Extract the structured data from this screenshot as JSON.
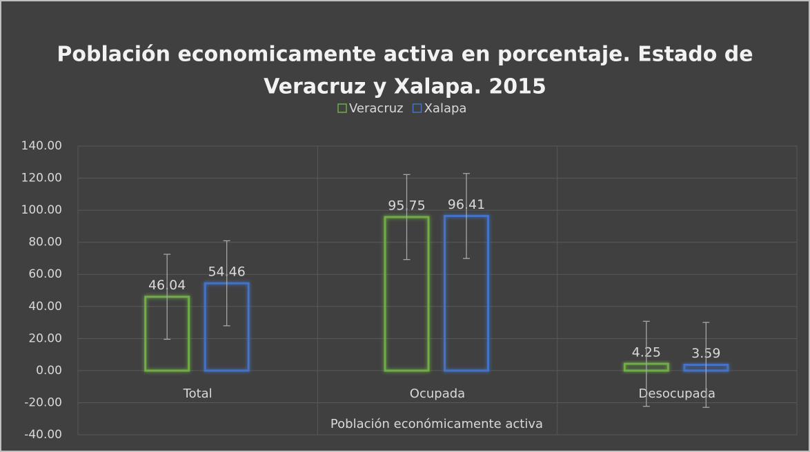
{
  "chart_data": {
    "type": "bar",
    "title": [
      "Población economicamente activa en porcentaje. Estado de",
      "Veracruz y Xalapa. 2015"
    ],
    "x_label": "Población económicamente activa",
    "categories": [
      "Total",
      "Ocupada",
      "Desocupada"
    ],
    "series": [
      {
        "name": "Veracruz",
        "color": "#70ad47",
        "values": [
          46.04,
          95.75,
          4.25
        ],
        "errors": [
          26.5,
          26.5,
          26.5
        ]
      },
      {
        "name": "Xalapa",
        "color": "#4472c4",
        "values": [
          54.46,
          96.41,
          3.59
        ],
        "errors": [
          26.5,
          26.5,
          26.5
        ]
      }
    ],
    "ylim": [
      -40,
      140
    ],
    "yticks": [
      {
        "value": -40,
        "label": "-40.00"
      },
      {
        "value": -20,
        "label": "-20.00"
      },
      {
        "value": 0,
        "label": "0.00"
      },
      {
        "value": 20,
        "label": "20.00"
      },
      {
        "value": 40,
        "label": "40.00"
      },
      {
        "value": 60,
        "label": "60.00"
      },
      {
        "value": 80,
        "label": "80.00"
      },
      {
        "value": 100,
        "label": "100.00"
      },
      {
        "value": 120,
        "label": "120.00"
      },
      {
        "value": 140,
        "label": "140.00"
      }
    ],
    "grid": true,
    "legend": "top"
  }
}
